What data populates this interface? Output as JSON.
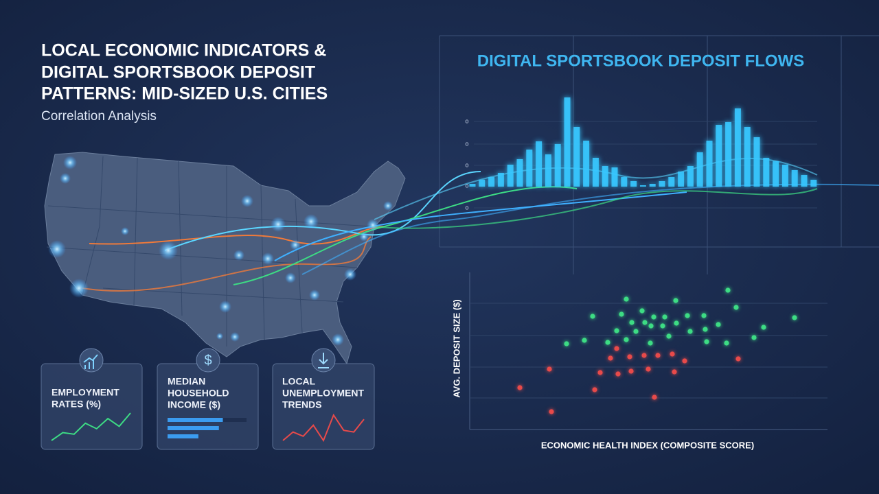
{
  "header": {
    "title": [
      "LOCAL ECONOMIC INDICATORS &",
      "DIGITAL SPORTSBOOK DEPOSIT",
      "PATTERNS: MID-SIZED U.S. CITIES"
    ],
    "subtitle": "Correlation Analysis"
  },
  "cards": [
    {
      "label": [
        "EMPLOYMENT",
        "RATES (%)"
      ],
      "type": "line",
      "color": "#3ddc84",
      "values": [
        0,
        10,
        8,
        22,
        15,
        28,
        18,
        35
      ]
    },
    {
      "icon": "$",
      "label": [
        "MEDIAN",
        "HOUSEHOLD",
        "INCOME ($)"
      ],
      "type": "bar",
      "color": "#3b9cf0",
      "values": [
        70,
        65,
        39
      ]
    },
    {
      "label": [
        "LOCAL",
        "UNEMPLOYMENT",
        "TRENDS"
      ],
      "type": "line",
      "color": "#e84a4a",
      "values": [
        0,
        10,
        5,
        18,
        0,
        30,
        12,
        10,
        25
      ]
    }
  ],
  "bar_chart": {
    "type": "bar",
    "title": "DIGITAL SPORTSBOOK DEPOSIT FLOWS",
    "color": "#38c8ff",
    "ytick_labels": [
      "o",
      "o",
      "o",
      "o",
      "o"
    ],
    "ylim": [
      0,
      140
    ],
    "values": [
      4,
      10,
      14,
      20,
      32,
      40,
      54,
      66,
      47,
      62,
      130,
      87,
      67,
      42,
      30,
      28,
      14,
      8,
      2,
      4,
      8,
      14,
      22,
      30,
      50,
      67,
      90,
      94,
      114,
      87,
      72,
      42,
      37,
      32,
      24,
      17,
      10
    ]
  },
  "scatter": {
    "type": "scatter",
    "y_label": "AVG. DEPOSIT SIZE ($)",
    "x_label": "ECONOMIC HEALTH INDEX (COMPOSITE SCORE)",
    "xlim": [
      0,
      521
    ],
    "ylim": [
      0,
      229
    ],
    "series": [
      {
        "color": "#3ddc84",
        "x": [
          141,
          167,
          179,
          201,
          228,
          221,
          236,
          251,
          255,
          242,
          228,
          264,
          268,
          263,
          284,
          290,
          300,
          301,
          317,
          321,
          341,
          343,
          345,
          362,
          376,
          388,
          374,
          414,
          428,
          473,
          214,
          281
        ],
        "y": [
          125,
          130,
          165,
          127,
          190,
          168,
          156,
          173,
          156,
          143,
          131,
          151,
          164,
          126,
          164,
          136,
          188,
          155,
          166,
          143,
          166,
          146,
          128,
          153,
          203,
          178,
          126,
          134,
          149,
          163,
          144,
          151
        ]
      },
      {
        "color": "#e84a4a",
        "x": [
          73,
          116,
          119,
          182,
          190,
          205,
          214,
          216,
          233,
          235,
          254,
          260,
          269,
          274,
          295,
          298,
          313,
          391
        ],
        "y": [
          61,
          88,
          26,
          58,
          83,
          104,
          118,
          81,
          106,
          85,
          108,
          88,
          47,
          108,
          110,
          84,
          100,
          103
        ]
      }
    ]
  }
}
